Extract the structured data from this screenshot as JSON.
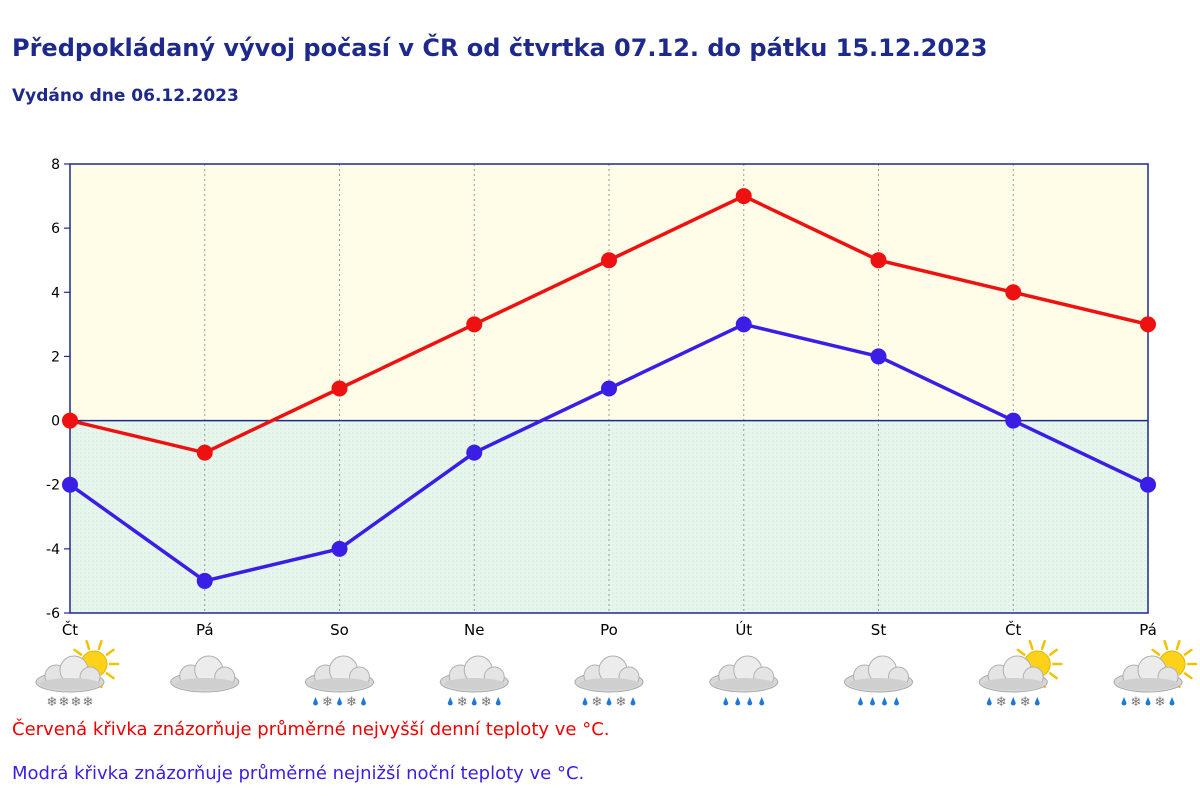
{
  "header": {
    "title": "Předpokládaný vývoj počasí v ČR od čtvrtka 07.12. do pátku 15.12.2023",
    "issued": "Vydáno dne 06.12.2023"
  },
  "legend": {
    "red": "Červená křivka znázorňuje průměrné nejvyšší denní teploty ve °C.",
    "blue": "Modrá křivka znázorňuje průměrné nejnižší noční teploty ve °C."
  },
  "colors": {
    "high": "#ee1111",
    "low": "#3a1ee6",
    "axis": "#1d2a8c",
    "above_zero_bg": "#fffde8",
    "below_zero_bg": "#e8f7ee"
  },
  "chart_data": {
    "type": "line",
    "categories": [
      "Čt",
      "Pá",
      "So",
      "Ne",
      "Po",
      "Út",
      "St",
      "Čt",
      "Pá"
    ],
    "series": [
      {
        "values": [
          0,
          -1,
          1,
          3,
          5,
          7,
          5,
          4,
          3
        ]
      },
      {
        "values": [
          -2,
          -5,
          -4,
          -1,
          1,
          3,
          2,
          0,
          -2
        ]
      }
    ],
    "ylim": [
      -6,
      8
    ],
    "yticks": [
      8,
      6,
      4,
      2,
      0,
      -2,
      -4,
      -6
    ],
    "grid": "vertical-dotted",
    "weather_icons": [
      "partly-sunny-snow-icon",
      "cloudy-icon",
      "cloudy-rain-snow-icon",
      "cloudy-rain-snow-icon",
      "cloudy-rain-snow-icon",
      "cloudy-rain-icon",
      "cloudy-rain-icon",
      "partly-sunny-rain-snow-icon",
      "partly-sunny-rain-snow-icon"
    ]
  }
}
